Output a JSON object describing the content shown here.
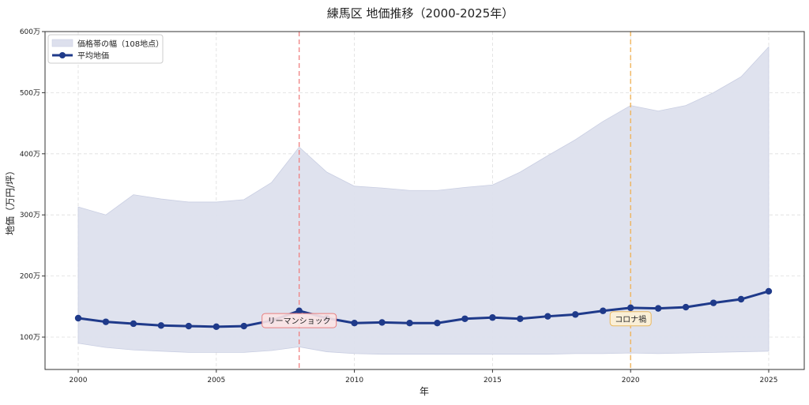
{
  "chart_data": {
    "type": "line",
    "title": "練馬区 地価推移（2000-2025年）",
    "xlabel": "年",
    "ylabel": "地価（万円/坪）",
    "xlim": [
      1998.75,
      2026.3
    ],
    "ylim": [
      45,
      600
    ],
    "x_ticks": [
      2000,
      2005,
      2010,
      2015,
      2020,
      2025
    ],
    "y_ticks": [
      100,
      200,
      300,
      400,
      500,
      600
    ],
    "y_tick_labels": [
      "100万",
      "200万",
      "300万",
      "400万",
      "500万",
      "600万"
    ],
    "grid": true,
    "legend_position": "upper left",
    "x": [
      2000,
      2001,
      2002,
      2003,
      2004,
      2005,
      2006,
      2007,
      2008,
      2009,
      2010,
      2011,
      2012,
      2013,
      2014,
      2015,
      2016,
      2017,
      2018,
      2019,
      2020,
      2021,
      2022,
      2023,
      2024,
      2025
    ],
    "series": [
      {
        "name": "平均地価",
        "type": "line",
        "color": "#1f3a8a",
        "values": [
          131,
          125,
          122,
          119,
          118,
          117,
          118,
          127,
          143,
          131,
          123,
          124,
          123,
          123,
          130,
          132,
          130,
          134,
          137,
          143,
          148,
          147,
          149,
          156,
          162,
          175
        ]
      },
      {
        "name": "価格帯の幅（108地点）",
        "type": "band",
        "color": "#dde0ed",
        "upper": [
          313,
          300,
          333,
          326,
          321,
          321,
          325,
          353,
          411,
          370,
          347,
          344,
          340,
          340,
          345,
          349,
          370,
          397,
          423,
          453,
          479,
          470,
          479,
          500,
          526,
          575
        ],
        "lower": [
          90,
          83,
          79,
          77,
          75,
          75,
          75,
          78,
          84,
          76,
          73,
          72,
          72,
          72,
          72,
          72,
          72,
          72,
          73,
          73,
          74,
          73,
          74,
          75,
          76,
          77
        ]
      }
    ],
    "annotations": [
      {
        "x": 2008,
        "label": "リーマンショック",
        "line_color": "#f08080",
        "box_color": "#fbe4e4",
        "border_color": "#e88080",
        "label_y": 127
      },
      {
        "x": 2020,
        "label": "コロナ禍",
        "line_color": "#f0b050",
        "box_color": "#fdf1d4",
        "border_color": "#e8b860",
        "label_y": 130
      }
    ]
  }
}
